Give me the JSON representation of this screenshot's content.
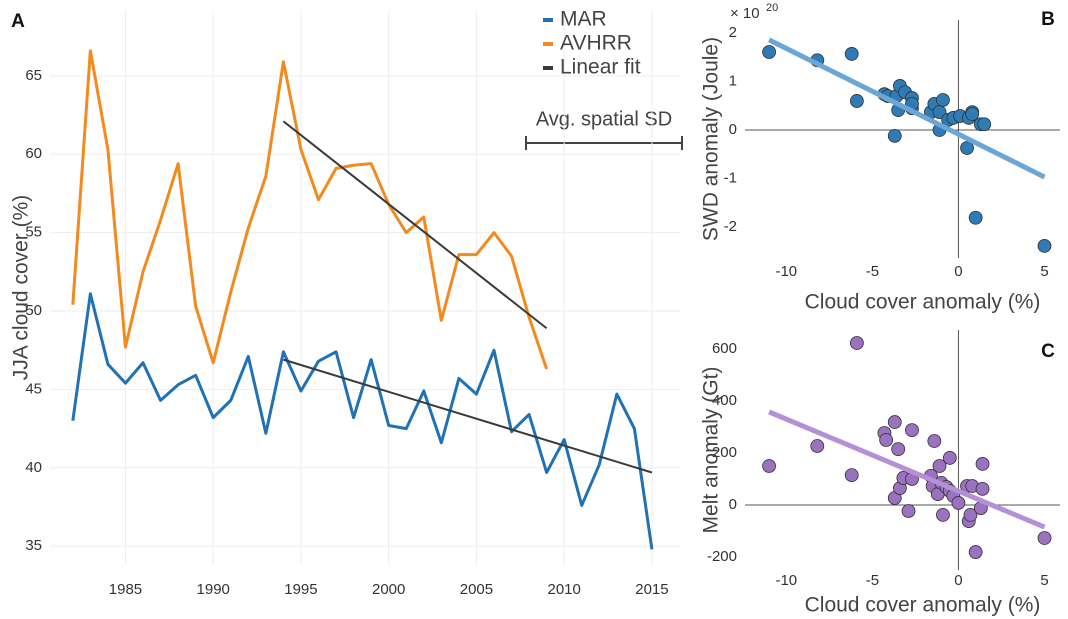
{
  "chart_data": [
    {
      "type": "line",
      "panel": "A",
      "ylabel": "JJA cloud cover (%)",
      "x": [
        1982,
        1983,
        1984,
        1985,
        1986,
        1987,
        1988,
        1989,
        1990,
        1991,
        1992,
        1993,
        1994,
        1995,
        1996,
        1997,
        1998,
        1999,
        2000,
        2001,
        2002,
        2003,
        2004,
        2005,
        2006,
        2007,
        2008,
        2009,
        2010,
        2011,
        2012,
        2013,
        2014,
        2015
      ],
      "series": [
        {
          "name": "MAR",
          "color": "#2172b4",
          "values": [
            43.0,
            51.1,
            46.6,
            45.4,
            46.7,
            44.3,
            45.3,
            45.9,
            43.2,
            44.3,
            47.1,
            42.2,
            47.4,
            44.9,
            46.8,
            47.4,
            43.2,
            46.9,
            42.7,
            42.5,
            44.9,
            41.6,
            45.7,
            44.7,
            47.5,
            42.3,
            43.4,
            39.7,
            41.8,
            37.6,
            40.2,
            44.7,
            42.5,
            34.8
          ]
        },
        {
          "name": "AVHRR",
          "color": "#f28a1e",
          "values": [
            50.4,
            66.6,
            60.3,
            47.7,
            52.5,
            55.8,
            59.4,
            50.3,
            46.7,
            51.2,
            55.3,
            58.6,
            65.9,
            60.3,
            57.1,
            59.1,
            59.3,
            59.4,
            56.8,
            55.0,
            56.0,
            49.4,
            53.6,
            53.6,
            55.0,
            53.5,
            49.6,
            46.3,
            null,
            null,
            null,
            null,
            null,
            null
          ]
        },
        {
          "name": "Linear fit",
          "color": "#3a3a3a",
          "x": [
            1994,
            2009,
            null,
            1994,
            2015
          ],
          "values": [
            62.1,
            48.9,
            null,
            46.9,
            39.7
          ]
        }
      ],
      "annotation": "Avg. spatial SD",
      "xlim": [
        1980.7,
        2016.6
      ],
      "xticks": [
        1985,
        1990,
        1995,
        2000,
        2005,
        2010,
        2015
      ],
      "ylim": [
        33.8,
        69.2
      ],
      "yticks": [
        35,
        40,
        45,
        50,
        55,
        60,
        65
      ],
      "grid": true
    },
    {
      "type": "scatter",
      "panel": "B",
      "xlabel": "Cloud cover anomaly (%)",
      "ylabel": "SWD anomaly (Joule)",
      "multiplier": "× 10",
      "multiplier_exponent": "20",
      "series": [
        {
          "color": "#2e7bb5",
          "x": [
            -11.0,
            -8.2,
            -6.2,
            -5.9,
            -4.3,
            -4.1,
            -3.6,
            -3.4,
            -3.1,
            -3.5,
            -3.7,
            -2.7,
            -2.7,
            -2.7,
            -1.6,
            -1.4,
            -1.1,
            -0.9,
            -1.1,
            -0.6,
            -0.3,
            0.1,
            0.5,
            0.6,
            0.8,
            0.8,
            1.0,
            1.3,
            1.5,
            5.0
          ],
          "values": [
            1.61,
            1.44,
            1.57,
            0.6,
            0.74,
            0.7,
            0.7,
            0.91,
            0.78,
            0.41,
            -0.12,
            0.66,
            0.45,
            0.54,
            0.37,
            0.54,
            0.37,
            0.62,
            0.0,
            0.21,
            0.25,
            0.29,
            -0.37,
            0.25,
            0.37,
            0.33,
            -1.81,
            0.12,
            0.12,
            -2.39
          ]
        }
      ],
      "fit": {
        "color": "#6aa6d6",
        "x": [
          -11,
          5
        ],
        "values": [
          1.86,
          -0.97
        ]
      },
      "xlim": [
        -12.4,
        5.9
      ],
      "xticks": [
        -10,
        -5,
        0,
        5
      ],
      "ylim": [
        -2.64,
        2.27
      ],
      "yticks": [
        -2,
        -1,
        0,
        1,
        2
      ],
      "grid": true
    },
    {
      "type": "scatter",
      "panel": "C",
      "xlabel": "Cloud cover anomaly (%)",
      "ylabel": "Melt anomaly (Gt)",
      "series": [
        {
          "color": "#9b72c0",
          "x": [
            -11.0,
            -8.2,
            -6.2,
            -5.9,
            -4.3,
            -4.2,
            -3.7,
            -3.5,
            -3.7,
            -3.4,
            -3.2,
            -2.9,
            -2.7,
            -2.7,
            -1.6,
            -1.4,
            -1.5,
            -1.2,
            -1.1,
            -1.0,
            -0.9,
            -0.7,
            -0.5,
            -0.5,
            -0.3,
            0.0,
            0.5,
            0.6,
            0.7,
            0.8,
            1.0,
            1.3,
            1.4,
            1.4,
            5.0
          ],
          "values": [
            150,
            227,
            115,
            623,
            277,
            250,
            319,
            215,
            27,
            65,
            104,
            -23,
            288,
            100,
            112,
            246,
            73,
            42,
            150,
            85,
            -38,
            69,
            54,
            181,
            35,
            8,
            73,
            -62,
            -38,
            73,
            -181,
            -12,
            62,
            158,
            -127
          ]
        }
      ],
      "fit": {
        "color": "#b690d6",
        "x": [
          -11,
          5
        ],
        "values": [
          358,
          -85
        ]
      },
      "xlim": [
        -12.4,
        5.9
      ],
      "xticks": [
        -10,
        -5,
        0,
        5
      ],
      "ylim": [
        -250,
        673
      ],
      "yticks": [
        -200,
        0,
        200,
        400,
        600
      ],
      "grid": true
    }
  ]
}
